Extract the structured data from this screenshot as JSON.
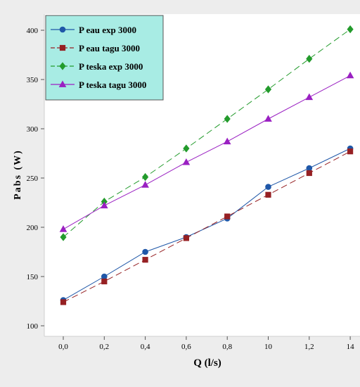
{
  "chart_data": {
    "type": "line",
    "title": "",
    "xlabel": "Q (l/s)",
    "ylabel": "Pabs (W)",
    "categories": [
      "0,0",
      "0,2",
      "0,4",
      "0,6",
      "0,8",
      "10",
      "1,2",
      "14"
    ],
    "y_ticks": [
      100,
      150,
      200,
      250,
      300,
      350,
      400
    ],
    "ylim": [
      97,
      415
    ],
    "grid": false,
    "legend_position": "top-left",
    "colors": {
      "plot_background": "#ffffff",
      "outer_background": "#ededed",
      "legend_background": "#a8ece4"
    },
    "series": [
      {
        "name": "P eau exp 3000",
        "color": "#1f57a8",
        "marker": "circle",
        "line": "solid",
        "values": [
          126,
          150,
          175,
          190,
          209,
          241,
          260,
          280
        ]
      },
      {
        "name": "P eau tagu 3000",
        "color": "#962023",
        "marker": "square",
        "line": "dashed",
        "values": [
          124,
          145,
          167,
          189,
          211,
          233,
          255,
          277
        ]
      },
      {
        "name": "P teska exp 3000",
        "color": "#239b2c",
        "marker": "diamond",
        "line": "dashed",
        "values": [
          190,
          226,
          251,
          280,
          310,
          340,
          371,
          401
        ]
      },
      {
        "name": "P teska tagu 3000",
        "color": "#9a20c2",
        "marker": "triangle",
        "line": "solid",
        "values": [
          198,
          222,
          243,
          266,
          287,
          310,
          332,
          354
        ]
      }
    ]
  }
}
